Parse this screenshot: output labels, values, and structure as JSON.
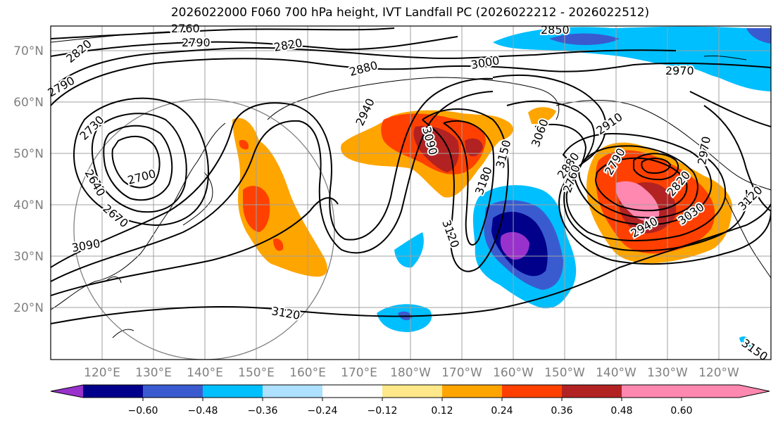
{
  "title": "2026022000 F060 700 hPa height, IVT Landfall PC (2026022212 - 2026022512)",
  "lat_labels": [
    "70°N",
    "60°N",
    "50°N",
    "40°N",
    "30°N",
    "20°N"
  ],
  "lon_labels": [
    "120°E",
    "130°E",
    "140°E",
    "150°E",
    "160°E",
    "170°E",
    "180°W",
    "170°W",
    "160°W",
    "150°W",
    "140°W",
    "130°W",
    "120°W"
  ],
  "contour_labels": [
    "2760",
    "2790",
    "2820",
    "2820",
    "2850",
    "2880",
    "2970",
    "3000",
    "2790",
    "2730",
    "2940",
    "3090",
    "2910",
    "2970",
    "2700",
    "3060",
    "3150",
    "2880",
    "2790",
    "2820",
    "3180",
    "2760",
    "2640",
    "2670",
    "3120",
    "2940",
    "3030",
    "3120",
    "3090",
    "3120",
    "3150"
  ],
  "colorbar": {
    "tick_labels": [
      "−0.60",
      "−0.48",
      "−0.36",
      "−0.24",
      "−0.12",
      "0.12",
      "0.24",
      "0.36",
      "0.48",
      "0.60"
    ],
    "colors": [
      "#9932cc",
      "#00008b",
      "#3a5bd0",
      "#00bfff",
      "#aee0ff",
      "#ffffff",
      "#ffe88a",
      "#ffa500",
      "#ff4000",
      "#b22222",
      "#ff88b0"
    ]
  }
}
